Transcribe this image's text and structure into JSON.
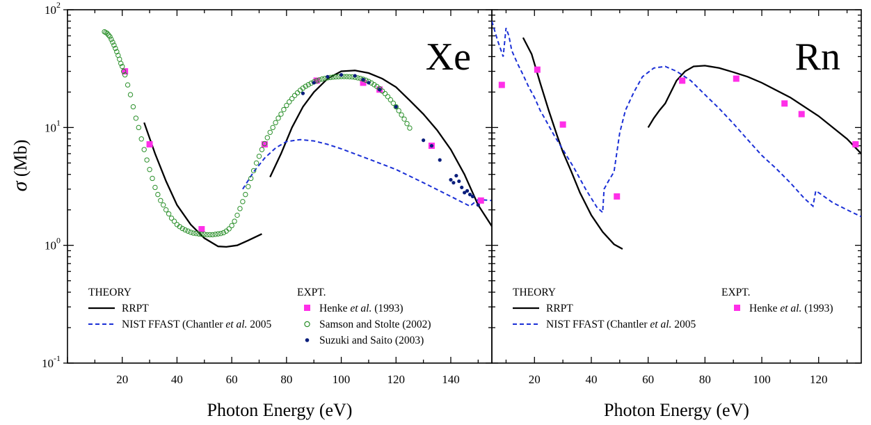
{
  "colors": {
    "rrpt": "#000000",
    "nist": "#1a2fd6",
    "henke": "#ff2fe8",
    "samson": "#2a8f2a",
    "suzuki": "#0a1e7c"
  },
  "chart_data": [
    {
      "type": "line",
      "element": "Xe",
      "xlabel": "Photon Energy (eV)",
      "ylabel": "σ (Mb)",
      "yscale": "log",
      "xlim": [
        0,
        155
      ],
      "ylim": [
        0.1,
        100
      ],
      "xticks": [
        "20",
        "40",
        "60",
        "80",
        "100",
        "120",
        "140"
      ],
      "yticks": [
        {
          "base": "10",
          "exp": "-1"
        },
        {
          "base": "10",
          "exp": "0"
        },
        {
          "base": "10",
          "exp": "1"
        },
        {
          "base": "10",
          "exp": "2"
        }
      ],
      "legend": {
        "theory_heading": "THEORY",
        "expt_heading": "EXPT.",
        "entries": {
          "rrpt": "RRPT",
          "nist": [
            "NIST FFAST (Chantler ",
            "et al.",
            ") 2005"
          ],
          "henke": [
            "Henke ",
            "et al.",
            ") (1993)"
          ],
          "samson": "Samson and Stolte (2002)",
          "suzuki": "Suzuki and Saito (2003)"
        }
      },
      "series": [
        {
          "name": "RRPT",
          "style": "line",
          "color": "#000000",
          "x": [
            28,
            32,
            36,
            40,
            45,
            50,
            55,
            58,
            62,
            66,
            71
          ],
          "y": [
            11,
            6,
            3.5,
            2.2,
            1.5,
            1.15,
            0.98,
            0.97,
            1.0,
            1.1,
            1.25
          ]
        },
        {
          "name": "RRPT",
          "style": "line",
          "color": "#000000",
          "x": [
            74,
            78,
            82,
            86,
            90,
            95,
            100,
            105,
            110,
            115,
            120,
            125,
            130,
            135,
            140,
            145,
            150,
            155
          ],
          "y": [
            3.8,
            6,
            10,
            15,
            20,
            26,
            30,
            30.5,
            29,
            26,
            22,
            17,
            13,
            9.5,
            6.5,
            4,
            2.2,
            1.45
          ]
        },
        {
          "name": "NIST FFAST (Chantler et al. 2005)",
          "style": "dash",
          "color": "#1a2fd6",
          "x": [
            64,
            68,
            72,
            76,
            80,
            85,
            90,
            95,
            100,
            110,
            120,
            130,
            140,
            147,
            150,
            155
          ],
          "y": [
            3.0,
            4.2,
            5.5,
            6.7,
            7.6,
            7.9,
            7.7,
            7.2,
            6.6,
            5.4,
            4.4,
            3.4,
            2.6,
            2.15,
            2.45,
            2.4
          ]
        },
        {
          "name": "Henke et al. (1993)",
          "style": "square",
          "color": "#ff2fe8",
          "x": [
            21,
            30,
            49,
            72,
            91,
            108,
            114,
            133,
            151
          ],
          "y": [
            30,
            7.2,
            1.37,
            7.2,
            25,
            24,
            21,
            7,
            2.4
          ]
        },
        {
          "name": "Samson and Stolte (2002)",
          "style": "circle",
          "color": "#2a8f2a",
          "x": [
            13.5,
            14,
            14.5,
            15,
            15.5,
            16,
            16.5,
            17,
            17.5,
            18,
            18.5,
            19,
            19.5,
            20,
            20.5,
            21,
            22,
            23,
            24,
            25,
            26,
            27,
            28,
            29,
            30,
            31,
            32,
            33,
            34,
            35,
            36,
            37,
            38,
            39,
            40,
            41,
            42,
            43,
            44,
            45,
            46,
            47,
            48,
            49,
            50,
            51,
            52,
            53,
            54,
            55,
            56,
            57,
            58,
            59,
            60,
            61,
            62,
            63,
            64,
            65,
            66,
            67,
            68,
            69,
            70,
            71,
            72,
            73,
            74,
            75,
            76,
            77,
            78,
            79,
            80,
            81,
            82,
            83,
            84,
            85,
            86,
            87,
            88,
            89,
            90,
            91,
            92,
            93,
            94,
            95,
            96,
            97,
            98,
            99,
            100,
            101,
            102,
            103,
            104,
            105,
            106,
            107,
            108,
            109,
            110,
            111,
            112,
            113,
            114,
            115,
            116,
            117,
            118,
            119,
            120,
            121,
            122,
            123,
            124,
            125
          ],
          "y": [
            65,
            64,
            63,
            61,
            59,
            56,
            53,
            50,
            47,
            44,
            41,
            38,
            35,
            33,
            30,
            28,
            23,
            19,
            15,
            12,
            10,
            8,
            6.5,
            5.3,
            4.4,
            3.7,
            3.1,
            2.7,
            2.4,
            2.2,
            2.0,
            1.85,
            1.7,
            1.6,
            1.5,
            1.44,
            1.39,
            1.35,
            1.32,
            1.29,
            1.27,
            1.26,
            1.25,
            1.24,
            1.24,
            1.23,
            1.23,
            1.23,
            1.24,
            1.25,
            1.26,
            1.28,
            1.32,
            1.38,
            1.47,
            1.6,
            1.8,
            2.05,
            2.35,
            2.7,
            3.15,
            3.7,
            4.3,
            5.0,
            5.7,
            6.5,
            7.3,
            8.2,
            9.1,
            10,
            11,
            12,
            13,
            14.2,
            15.4,
            16.5,
            17.6,
            18.7,
            19.7,
            20.7,
            21.6,
            22.4,
            23.1,
            23.8,
            24.4,
            24.9,
            25.4,
            25.8,
            26.1,
            26.4,
            26.6,
            26.8,
            26.9,
            27,
            27.1,
            27.1,
            27.1,
            27,
            26.9,
            26.7,
            26.4,
            26.1,
            25.7,
            25.2,
            24.6,
            23.9,
            23.1,
            22.3,
            21.4,
            20.4,
            19.4,
            18.3,
            17.2,
            16.1,
            15,
            13.9,
            12.8,
            11.8,
            10.8,
            9.9
          ]
        },
        {
          "name": "Suzuki and Saito (2003)",
          "style": "dot",
          "color": "#0a1e7c",
          "x": [
            86,
            90,
            95,
            100,
            105,
            108,
            110,
            114,
            120,
            130,
            133,
            136,
            140,
            141,
            142,
            143,
            144,
            145,
            146,
            147,
            148,
            150
          ],
          "y": [
            19.5,
            24,
            27,
            28,
            27.5,
            25.5,
            24,
            21,
            15,
            7.8,
            7,
            5.3,
            3.6,
            3.4,
            3.9,
            3.5,
            3.1,
            2.8,
            2.9,
            2.7,
            2.6,
            2.2
          ]
        }
      ]
    },
    {
      "type": "line",
      "element": "Rn",
      "xlabel": "Photon Energy (eV)",
      "yscale": "log",
      "xlim": [
        5,
        135
      ],
      "ylim": [
        0.1,
        100
      ],
      "xticks": [
        "20",
        "40",
        "60",
        "80",
        "100",
        "120"
      ],
      "legend": {
        "theory_heading": "THEORY",
        "expt_heading": "EXPT.",
        "entries": {
          "rrpt": "RRPT",
          "nist": [
            "NIST FFAST (Chantler ",
            "et al.",
            ") 2005"
          ],
          "henke": [
            "Henke ",
            "et al.",
            ") (1993)"
          ]
        }
      },
      "series": [
        {
          "name": "RRPT",
          "style": "line",
          "color": "#000000",
          "x": [
            16,
            19,
            22,
            25,
            28,
            30,
            33,
            36,
            40,
            44,
            48,
            51
          ],
          "y": [
            58,
            42,
            24,
            14,
            8.5,
            6.2,
            4.2,
            2.8,
            1.8,
            1.3,
            1.02,
            0.93
          ]
        },
        {
          "name": "RRPT",
          "style": "line",
          "color": "#000000",
          "x": [
            60,
            62,
            64,
            66,
            68,
            70,
            73,
            76,
            80,
            85,
            90,
            95,
            100,
            110,
            120,
            130,
            135
          ],
          "y": [
            10,
            12,
            14,
            16,
            20,
            25,
            30,
            33,
            33.5,
            32,
            29.5,
            27,
            24,
            18,
            12.5,
            8,
            6
          ]
        },
        {
          "name": "NIST FFAST (Chantler et al. 2005)",
          "style": "dash",
          "color": "#1a2fd6",
          "x": [
            5,
            7,
            9,
            10,
            11,
            12,
            14,
            16,
            18,
            20,
            22,
            24,
            27,
            30,
            34,
            38,
            42,
            44,
            44.5,
            46,
            48,
            50,
            52,
            55,
            58,
            62,
            66,
            70,
            75,
            80,
            85,
            90,
            95,
            100,
            105,
            110,
            115,
            118,
            119,
            120,
            125,
            130,
            135
          ],
          "y": [
            80,
            55,
            40,
            70,
            60,
            45,
            35,
            28,
            22,
            18,
            14,
            11.5,
            8.5,
            6.5,
            4.5,
            3.0,
            2.1,
            1.9,
            3.0,
            3.5,
            4.2,
            9,
            14,
            20,
            27,
            32,
            33,
            30,
            25,
            19,
            14.5,
            10.8,
            7.9,
            5.8,
            4.5,
            3.4,
            2.5,
            2.15,
            2.9,
            2.8,
            2.3,
            2.0,
            1.75
          ]
        },
        {
          "name": "Henke et al. (1993)",
          "style": "square",
          "color": "#ff2fe8",
          "x": [
            8.5,
            21,
            30,
            49,
            72,
            91,
            108,
            114,
            133
          ],
          "y": [
            23,
            31,
            10.6,
            2.6,
            25,
            26,
            16,
            13,
            7.2
          ]
        }
      ]
    }
  ]
}
